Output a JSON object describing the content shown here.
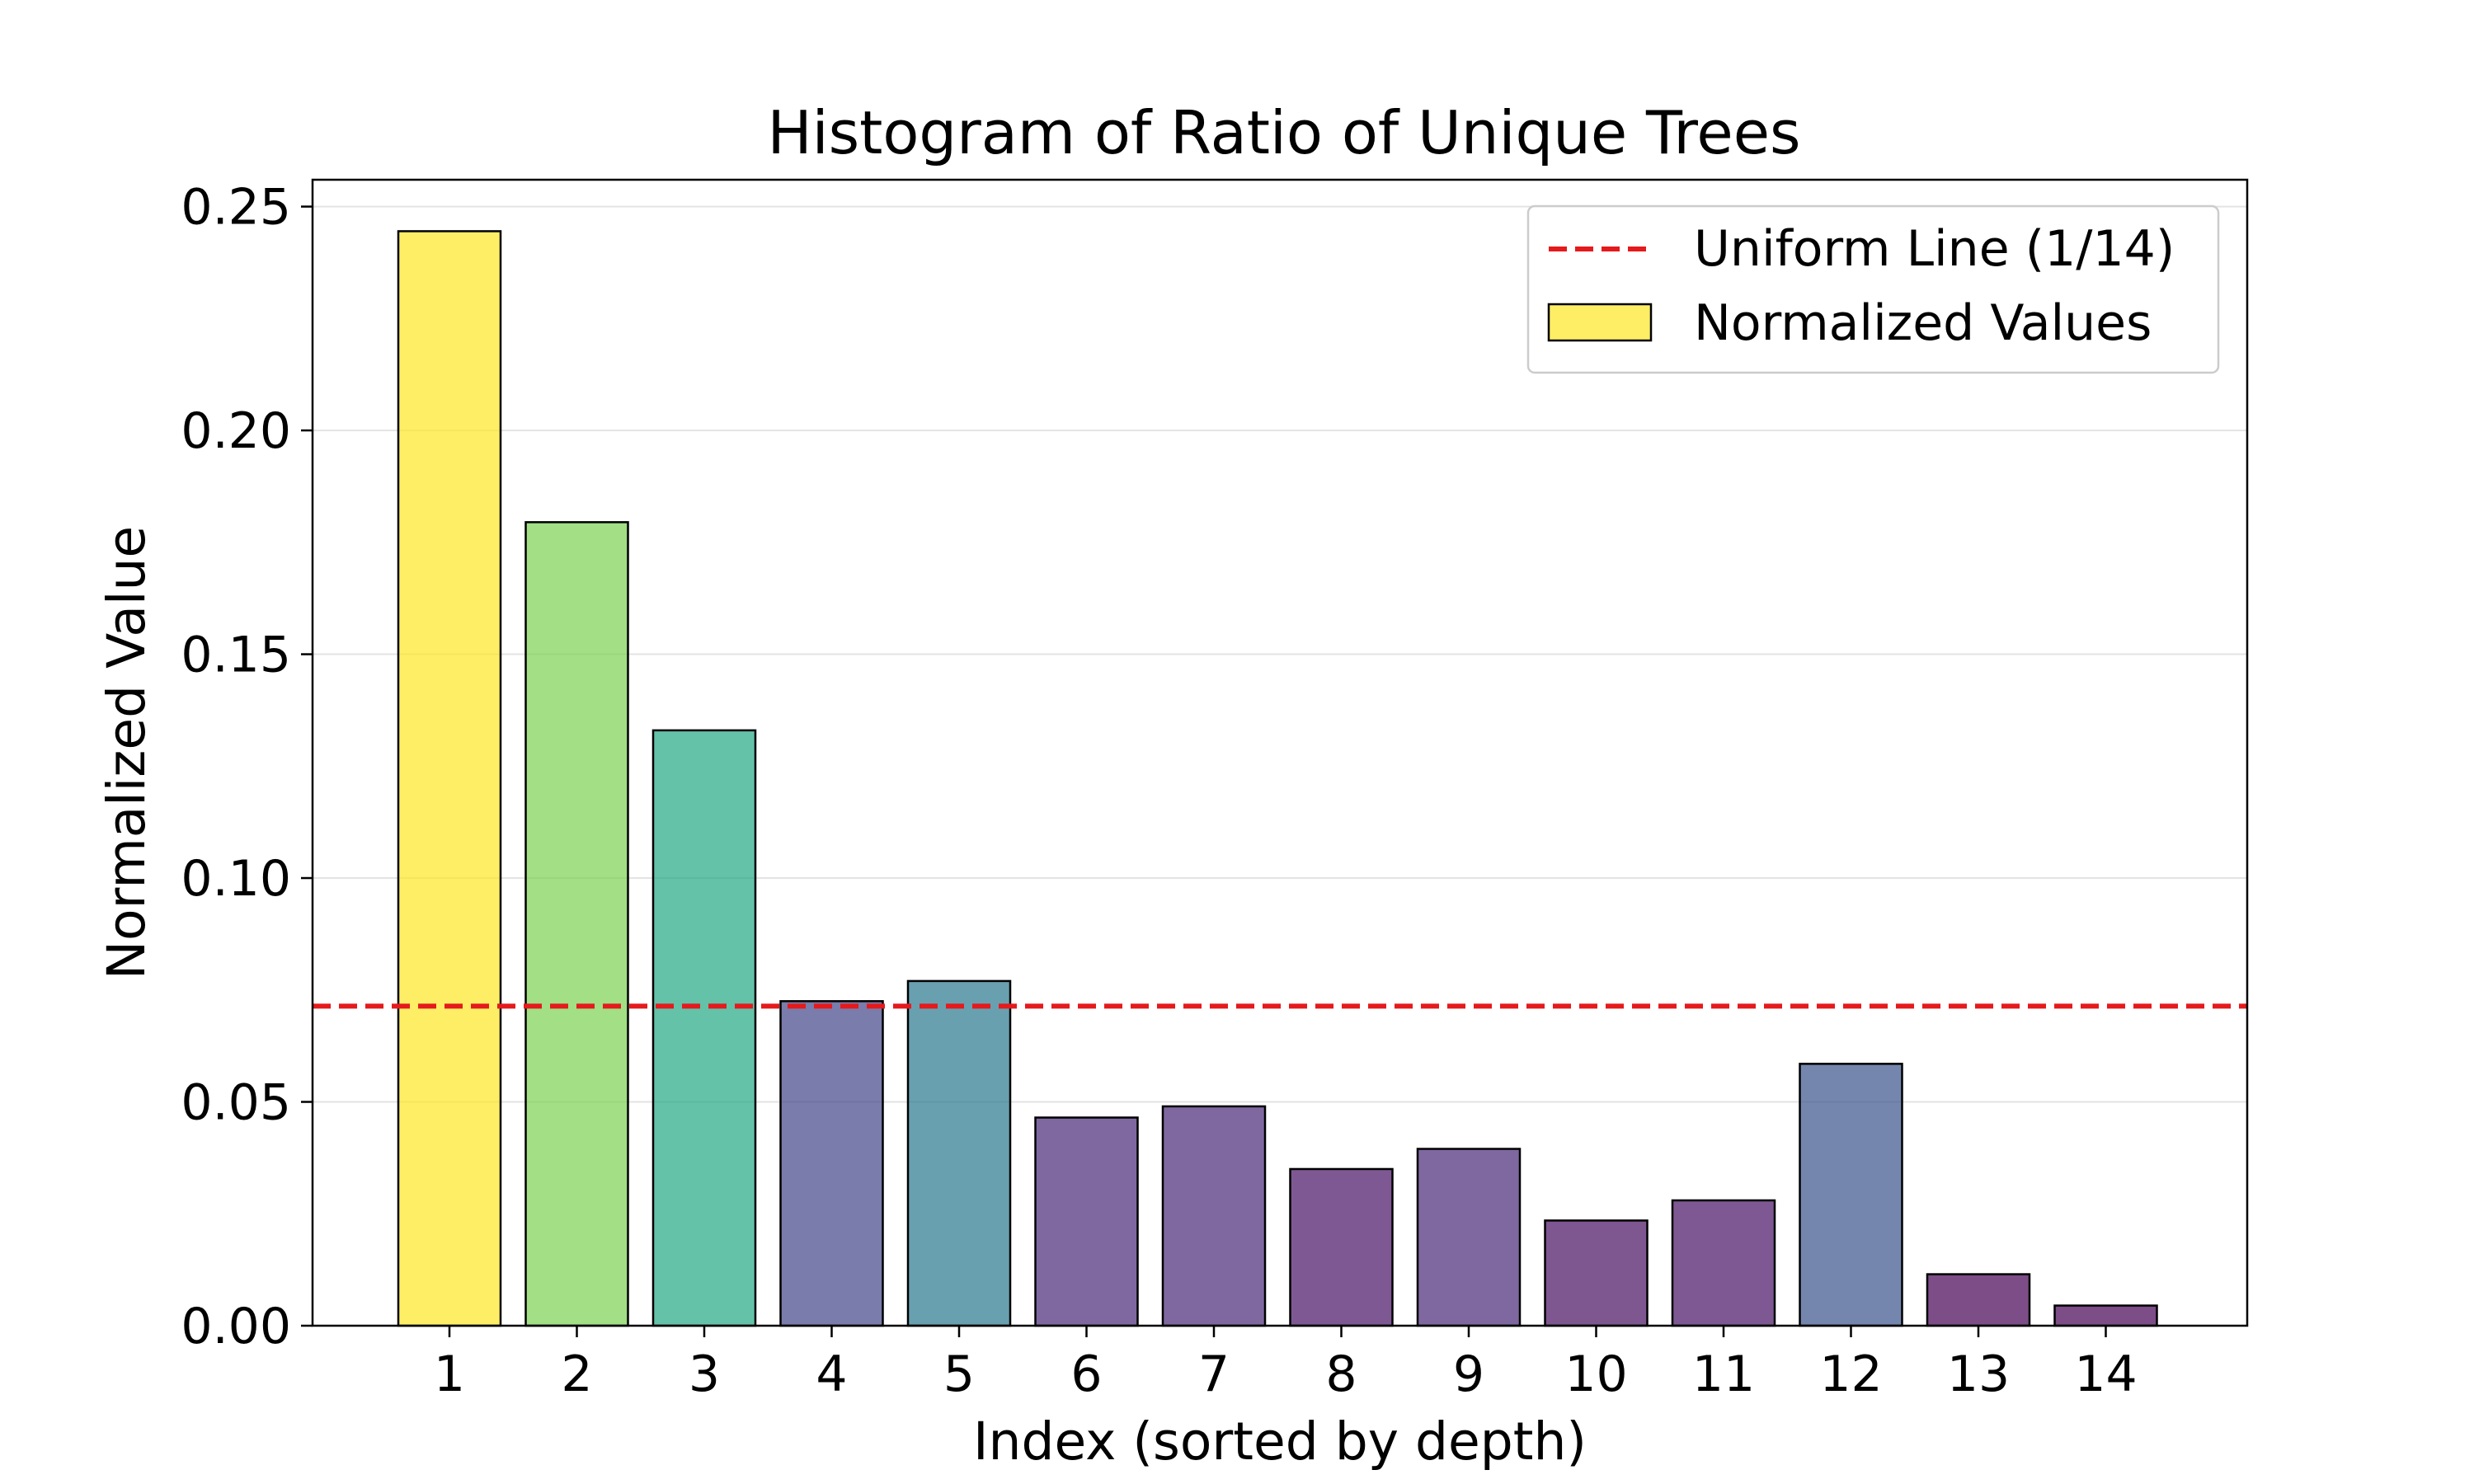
{
  "chart_data": {
    "type": "bar",
    "title": "Histogram of Ratio of Unique Trees",
    "xlabel": "Index (sorted by depth)",
    "ylabel": "Normalized Value",
    "categories": [
      "1",
      "2",
      "3",
      "4",
      "5",
      "6",
      "7",
      "8",
      "9",
      "10",
      "11",
      "12",
      "13",
      "14"
    ],
    "values": [
      0.2445,
      0.1795,
      0.133,
      0.0725,
      0.077,
      0.0465,
      0.049,
      0.035,
      0.0395,
      0.0235,
      0.028,
      0.0585,
      0.0115,
      0.0045
    ],
    "bar_colors": [
      "#fde725",
      "#7ad151",
      "#22a884",
      "#414487",
      "#2a788e",
      "#482878",
      "#482878",
      "#471164",
      "#482878",
      "#470e61",
      "#471164",
      "#3b528b",
      "#440154",
      "#440154"
    ],
    "bar_opacity": 0.7,
    "bar_edge_color": "#000000",
    "ylim": [
      0,
      0.256
    ],
    "yticks": [
      0.0,
      0.05,
      0.1,
      0.15,
      0.2,
      0.25
    ],
    "ytick_labels": [
      "0.00",
      "0.05",
      "0.10",
      "0.15",
      "0.20",
      "0.25"
    ],
    "grid": "y",
    "reference_line": {
      "label": "Uniform Line (1/14)",
      "value": 0.0714,
      "color": "#e41a1c",
      "style": "dashed"
    },
    "legend": {
      "placement": "upper right",
      "entries": [
        {
          "label": "Uniform Line (1/14)",
          "kind": "line",
          "color": "#e41a1c"
        },
        {
          "label": "Normalized Values",
          "kind": "patch",
          "color": "#fde725"
        }
      ]
    }
  }
}
